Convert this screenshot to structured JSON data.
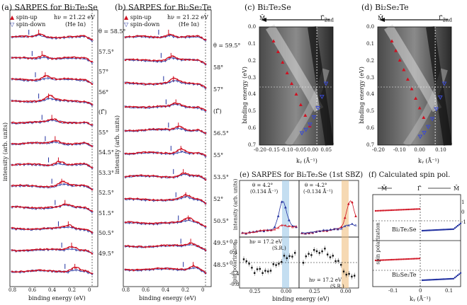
{
  "panel_a": {
    "title": "(a)  SARPES for Bi₂Te₂Se",
    "legend": {
      "up": "spin-up",
      "down": "spin-down",
      "photon": "hν = 21.22 eV",
      "source": "(He Iα)"
    },
    "angles": [
      "θ = 58.5°",
      "57.5°",
      "57°",
      "56°",
      "(Γ̄)",
      "55°",
      "54.5°",
      "53.3°",
      "52.5°",
      "51.5°",
      "50.5°",
      "49.5°"
    ],
    "xlabel": "binding energy (eV)",
    "ylabel": "intensity (arb. units)",
    "xticks": [
      "0.8",
      "0.6",
      "0.4",
      "0.2",
      "0"
    ]
  },
  "panel_b": {
    "title": "(b)  SARPES for Bi₂Se₂Te",
    "legend": {
      "up": "spin-up",
      "down": "spin-down",
      "photon": "hν = 21.22 eV",
      "source": "(He Iα)"
    },
    "angles": [
      "θ = 59.5°",
      "58°",
      "57°",
      "(Γ̄)",
      "56.5°",
      "55°",
      "53.5°",
      "52°",
      "50.5°",
      "49.5°",
      "48.5°"
    ],
    "xlabel": "binding energy (eV)",
    "ylabel": "intensity (arb. units)",
    "xticks": [
      "0.8",
      "0.6",
      "0.4",
      "0.2",
      "0"
    ]
  },
  "panel_c": {
    "title": "(c)  Bi₂Te₂Se",
    "m_label": "M̄",
    "g_label": "Γ̄",
    "g_sub": "2nd",
    "ylabel": "binding energy (eV)",
    "xlabel": "kᵧ (Å⁻¹)",
    "yticks": [
      "0.0",
      "0.1",
      "0.2",
      "0.3",
      "0.4",
      "0.5",
      "0.6",
      "0.7"
    ],
    "xticks": [
      "-0.20",
      "-0.15",
      "-0.10",
      "-0.05",
      "0.00",
      "0.05"
    ]
  },
  "panel_d": {
    "title": "(d)  Bi₂Se₂Te",
    "m_label": "M̄",
    "g_label": "Γ̄",
    "g_sub": "2nd",
    "ylabel": "binding energy (eV)",
    "xlabel": "kᵧ (Å⁻¹)",
    "yticks": [
      "0.0",
      "0.1",
      "0.2",
      "0.3",
      "0.4",
      "0.5",
      "0.6",
      "0.7"
    ],
    "xticks": [
      "-0.20",
      "-0.10",
      "0.00",
      "0.10"
    ]
  },
  "panel_e": {
    "title": "(e)  SARPES for Bi₂Te₂Se (1st SBZ)",
    "left_theta": "θ = 4.2°",
    "left_k": "(0.134 Å⁻¹)",
    "right_theta": "θ = -4.2°",
    "right_k": "(-0.134 Å⁻¹)",
    "hv": "hν = 17.2 eV",
    "sr": "(S.R.)",
    "ylabel_top": "intensity (arb. units)",
    "ylabel_bottom": "spin polarization",
    "xlabel": "binding energy (eV)",
    "xticks": [
      "0.25",
      "0.00",
      "0.25",
      "0.00"
    ],
    "yticks": [
      "0.8",
      "0.4",
      "0",
      "-0.4",
      "-0.8"
    ]
  },
  "panel_f": {
    "title": "(f)  Calculated spin pol.",
    "m_left": "M̄",
    "gamma": "Γ̄",
    "m_right": "M̄",
    "top_label": "Bi₂Te₂Se",
    "bottom_label": "Bi₂Se₂Te",
    "ylabel": "spin polarization",
    "xlabel": "kᵧ (Å⁻¹)",
    "xticks": [
      "-0.1",
      "0",
      "0.1"
    ],
    "yticks": [
      "1",
      "0",
      "-1"
    ]
  },
  "colors": {
    "up": "#d01020",
    "down": "#2030a0",
    "guide": "#9a9a9a"
  }
}
